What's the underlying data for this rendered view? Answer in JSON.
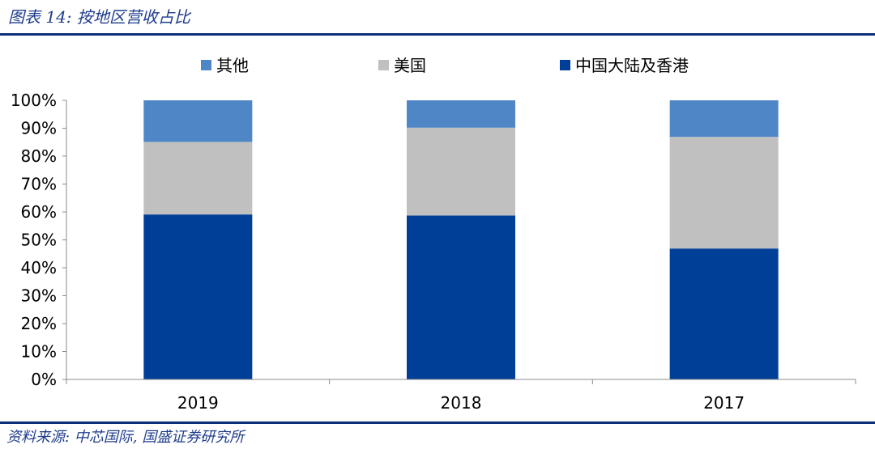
{
  "header": {
    "caption": "图表 14:  按地区营收占比"
  },
  "footer": {
    "source": "资料来源:  中芯国际, 国盛证券研究所"
  },
  "chart_data": {
    "type": "bar",
    "stacked": true,
    "categories": [
      "2019",
      "2018",
      "2017"
    ],
    "series": [
      {
        "name": "中国大陆及香港",
        "values": [
          59.1,
          58.7,
          46.9
        ],
        "color": "#003f98"
      },
      {
        "name": "美国",
        "values": [
          26.0,
          31.5,
          40.0
        ],
        "color": "#c0c0c0"
      },
      {
        "name": "其他",
        "values": [
          14.9,
          9.8,
          13.1
        ],
        "color": "#4f86c6"
      }
    ],
    "legend_order": [
      "其他",
      "美国",
      "中国大陆及香港"
    ],
    "legend_position": "top",
    "ylim": [
      0,
      100
    ],
    "yticks": [
      0,
      10,
      20,
      30,
      40,
      50,
      60,
      70,
      80,
      90,
      100
    ],
    "ytick_suffix": "%",
    "grid": false
  }
}
